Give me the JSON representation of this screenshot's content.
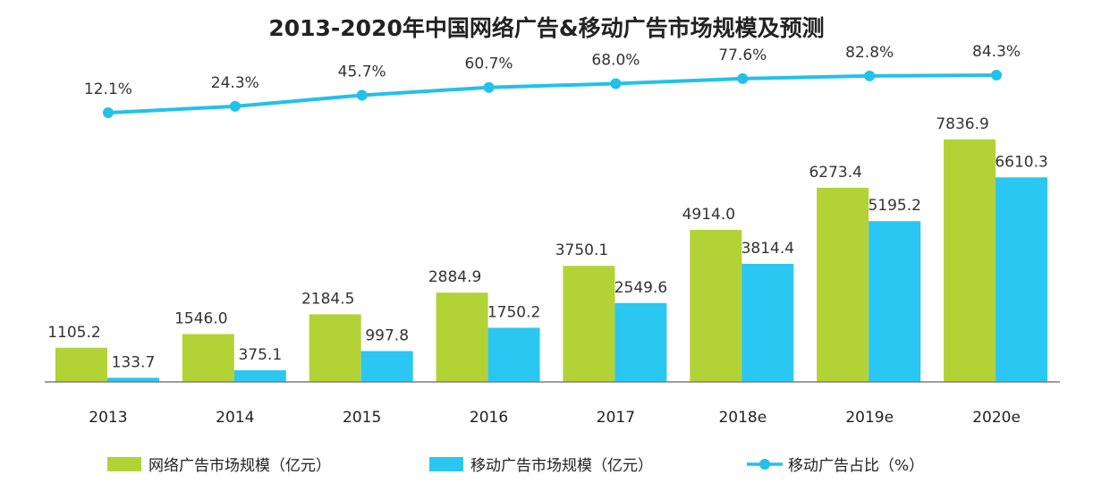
{
  "chart_data": {
    "type": "bar",
    "title": "2013-2020年中国网络广告&移动广告市场规模及预测",
    "categories": [
      "2013",
      "2014",
      "2015",
      "2016",
      "2017",
      "2018e",
      "2019e",
      "2020e"
    ],
    "series": [
      {
        "name": "网络广告市场规模（亿元）",
        "type": "bar",
        "color": "#B3D236",
        "values": [
          1105.2,
          1546.0,
          2184.5,
          2884.9,
          3750.1,
          4914.0,
          6273.4,
          7836.9
        ],
        "labels": [
          "1105.2",
          "1546.0",
          "2184.5",
          "2884.9",
          "3750.1",
          "4914.0",
          "6273.4",
          "7836.9"
        ]
      },
      {
        "name": "移动广告市场规模（亿元）",
        "type": "bar",
        "color": "#29C7F2",
        "values": [
          133.7,
          375.1,
          997.8,
          1750.2,
          2549.6,
          3814.4,
          5195.2,
          6610.3
        ],
        "labels": [
          "133.7",
          "375.1",
          "997.8",
          "1750.2",
          "2549.6",
          "3814.4",
          "5195.2",
          "6610.3"
        ]
      },
      {
        "name": "移动广告占比（%）",
        "type": "line",
        "color": "#22C1EA",
        "values": [
          12.1,
          24.3,
          45.7,
          60.7,
          68.0,
          77.6,
          82.8,
          84.3
        ],
        "labels": [
          "12.1%",
          "24.3%",
          "45.7%",
          "60.7%",
          "68.0%",
          "77.6%",
          "82.8%",
          "84.3%"
        ]
      }
    ],
    "xlabel": "",
    "ylabel": "",
    "ylim": [
      0,
      9500
    ],
    "grid": false,
    "legend_position": "bottom"
  }
}
